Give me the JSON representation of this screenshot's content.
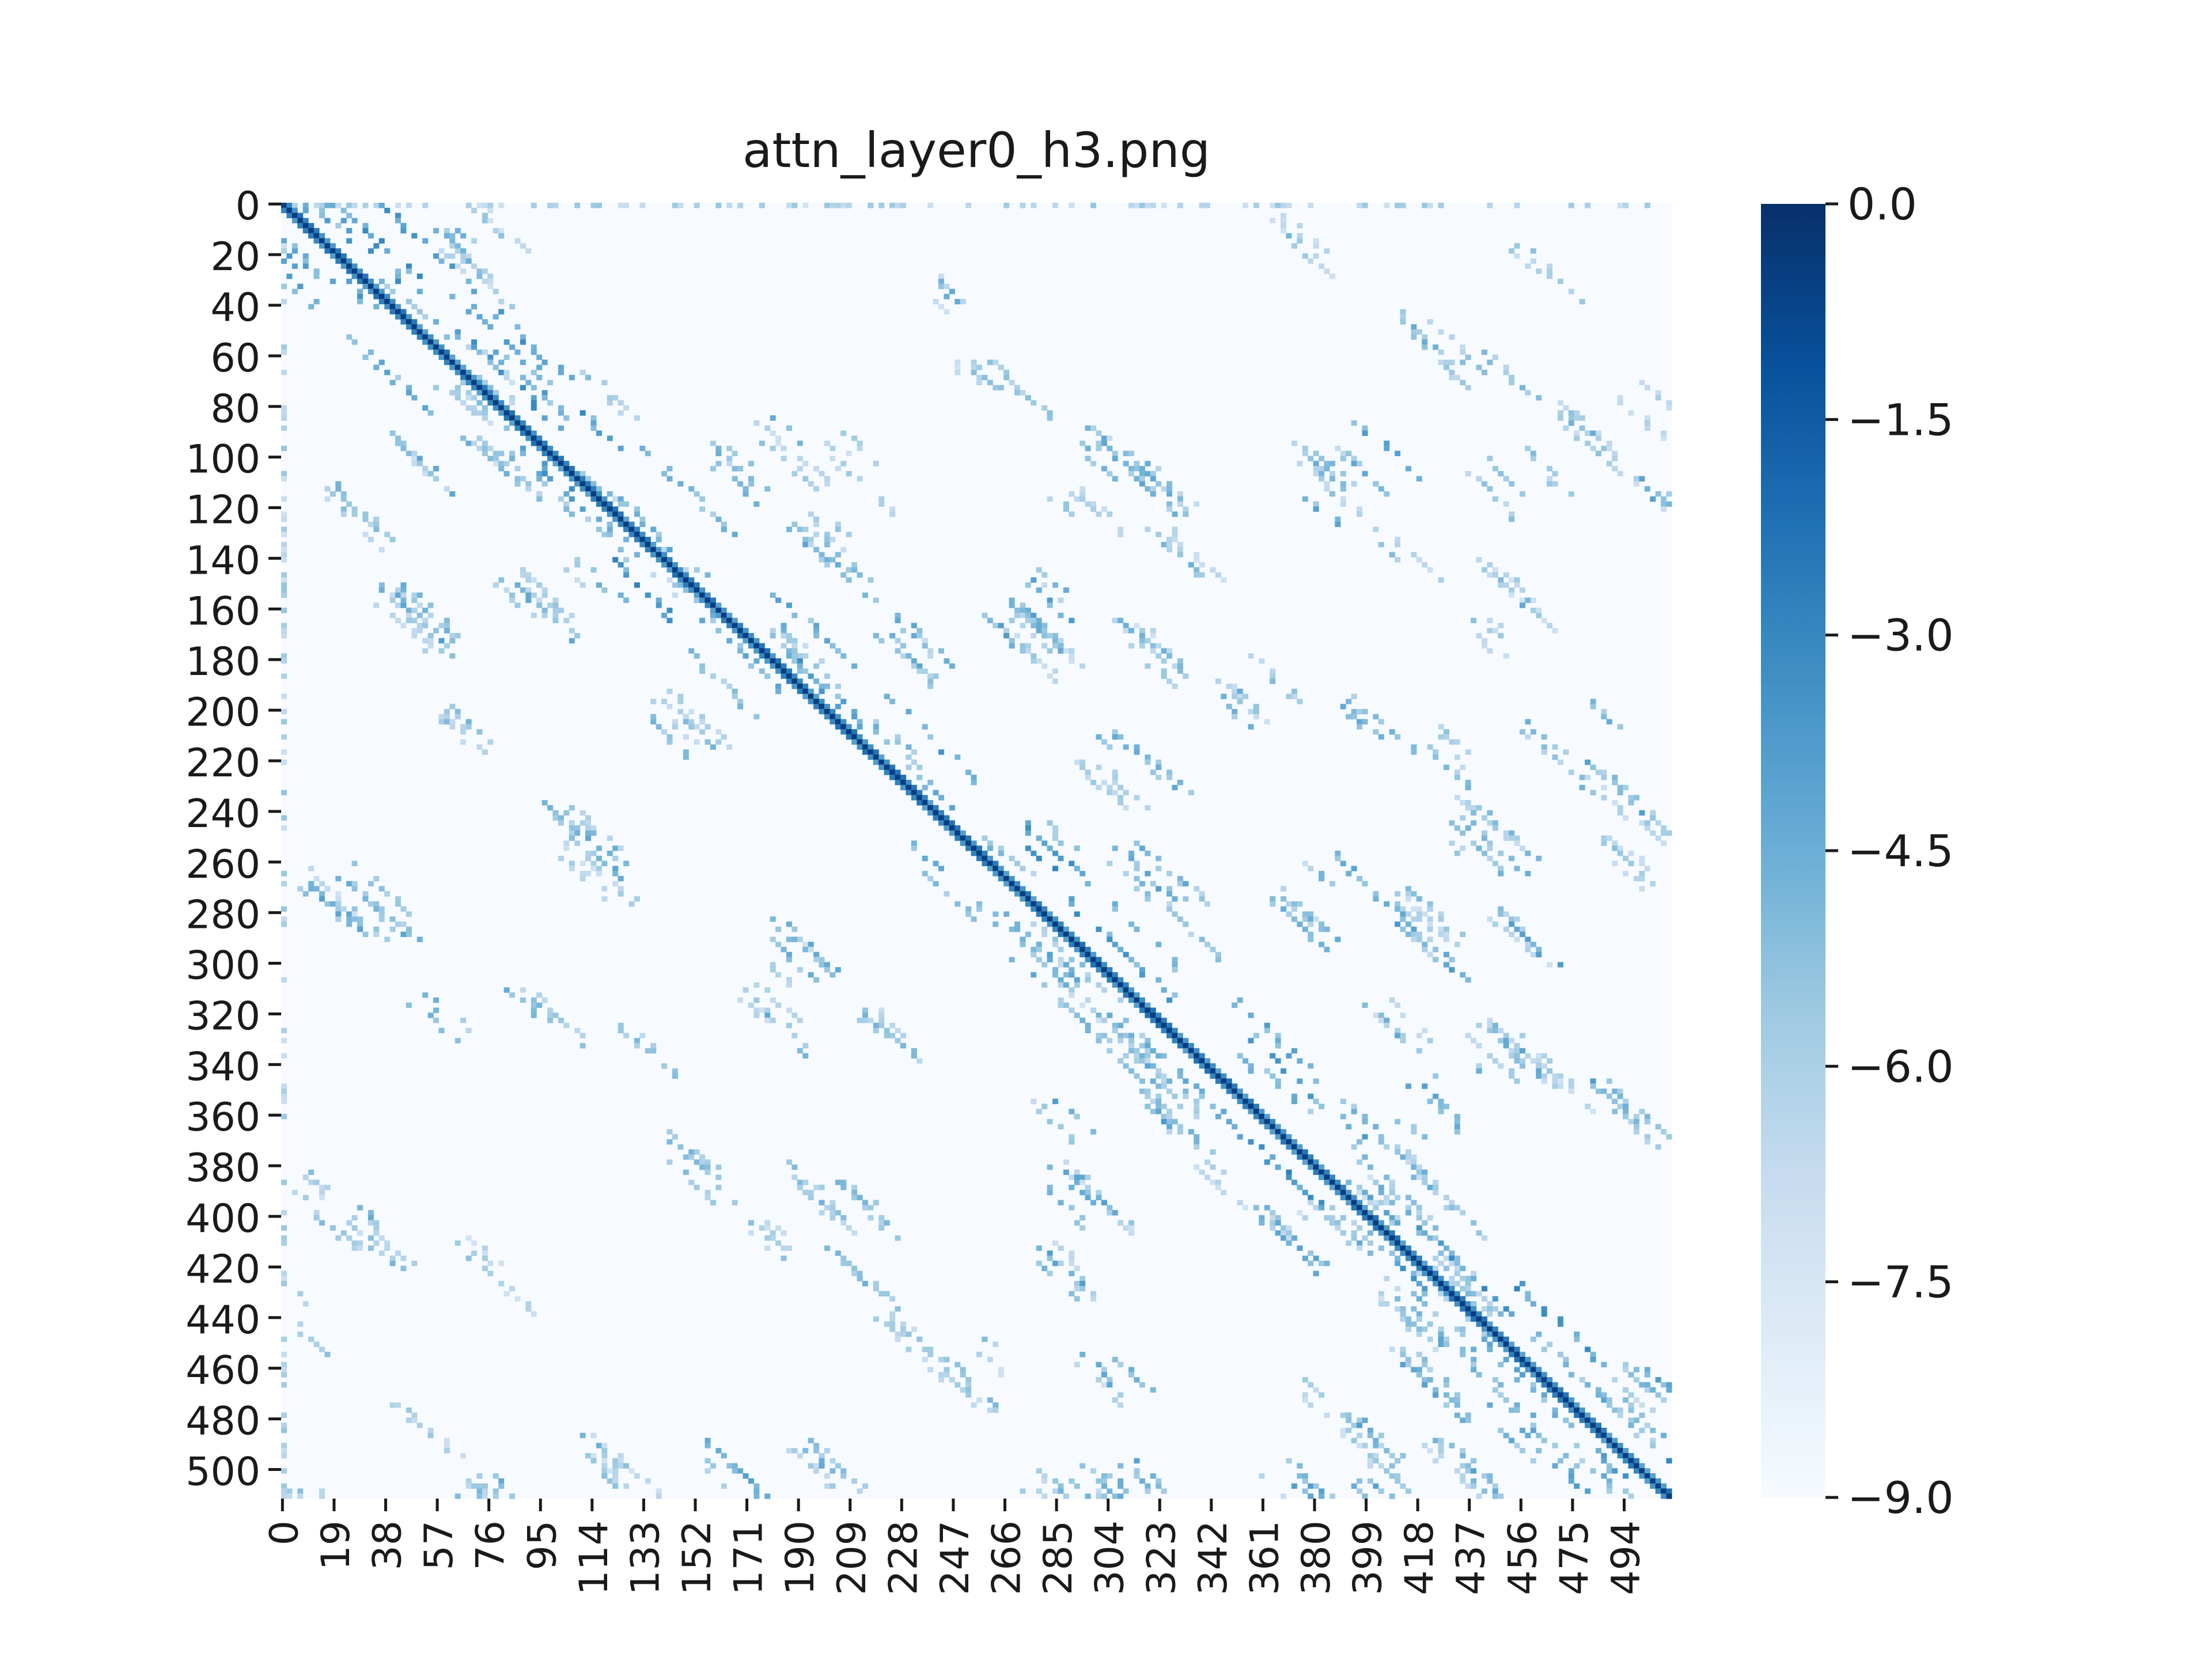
{
  "chart_data": {
    "type": "heatmap",
    "title": "attn_layer0_h3.png",
    "size": 512,
    "colormap": "Blues",
    "value_range": [
      -9.0,
      0.0
    ],
    "y_tick_labels": [
      "0",
      "20",
      "40",
      "60",
      "80",
      "100",
      "120",
      "140",
      "160",
      "180",
      "200",
      "220",
      "240",
      "260",
      "280",
      "300",
      "320",
      "340",
      "360",
      "380",
      "400",
      "420",
      "440",
      "460",
      "480",
      "500"
    ],
    "x_tick_labels": [
      "0",
      "19",
      "38",
      "57",
      "76",
      "95",
      "114",
      "133",
      "152",
      "171",
      "190",
      "209",
      "228",
      "247",
      "266",
      "285",
      "304",
      "323",
      "342",
      "361",
      "380",
      "399",
      "418",
      "437",
      "456",
      "475",
      "494"
    ],
    "colorbar_tick_labels": [
      "0.0",
      "−1.5",
      "−3.0",
      "−4.5",
      "−6.0",
      "−7.5",
      "−9.0"
    ],
    "colorbar_values": [
      0.0,
      -1.5,
      -3.0,
      -4.5,
      -6.0,
      -7.5,
      -9.0
    ],
    "description_pattern": "strong main diagonal with parallel off-diagonal bands and scattered diagonal streak clusters",
    "colors": {
      "low": "#f7fbff",
      "high": "#08306b"
    }
  }
}
